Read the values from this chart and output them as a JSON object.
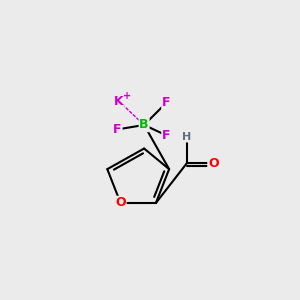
{
  "bg_color": "#ebebeb",
  "atom_colors": {
    "K": "#cc00cc",
    "F": "#cc00cc",
    "B": "#00bb00",
    "O_ring": "#ff0000",
    "O_carbonyl": "#ff0000",
    "H": "#607080",
    "C": "#000000"
  },
  "bond_color": "#000000",
  "dashed_bond_color": "#cc00cc",
  "font_size_atoms": 9,
  "font_size_plus": 7
}
